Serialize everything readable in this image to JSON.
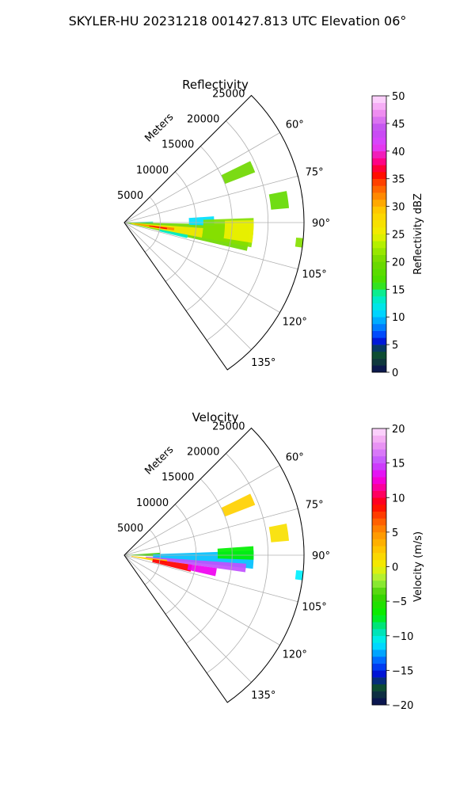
{
  "figure": {
    "title": "SKYLER-HU  20231218  001427.813 UTC Elevation 06°"
  },
  "chart_data": [
    {
      "type": "heatmap",
      "subtype": "polar-sector-ppi",
      "title": "Reflectivity",
      "radial_label": "Meters",
      "radial_ticks": [
        5000,
        10000,
        15000,
        20000,
        25000
      ],
      "radial_tick_labels": [
        "5000",
        "10000",
        "15000",
        "20000",
        "25000"
      ],
      "range_max": 25000,
      "angle_range_deg": [
        45,
        145
      ],
      "angle_ticks": [
        60,
        75,
        90,
        105,
        120,
        135
      ],
      "angle_tick_labels": [
        "60°",
        "75°",
        "90°",
        "105°",
        "120°",
        "135°"
      ],
      "grid": true,
      "colorbar": {
        "label": "Reflectivity dBZ",
        "min": 0,
        "max": 50,
        "ticks": [
          0,
          5,
          10,
          15,
          20,
          25,
          30,
          35,
          40,
          45,
          50
        ],
        "tick_labels": [
          "0",
          "5",
          "10",
          "15",
          "20",
          "25",
          "30",
          "35",
          "40",
          "45",
          "50"
        ]
      },
      "echoes": [
        {
          "az": [
            88,
            93
          ],
          "range": [
            0,
            4000
          ],
          "value": 14
        },
        {
          "az": [
            91,
            103
          ],
          "range": [
            300,
            17500
          ],
          "value": 20
        },
        {
          "az": [
            94,
            101
          ],
          "range": [
            1000,
            11000
          ],
          "value": 26
        },
        {
          "az": [
            96,
            99
          ],
          "range": [
            1500,
            7000
          ],
          "value": 32
        },
        {
          "az": [
            97,
            99
          ],
          "range": [
            3500,
            6000
          ],
          "value": 36
        },
        {
          "az": [
            86,
            92
          ],
          "range": [
            9000,
            12500
          ],
          "value": 11
        },
        {
          "az": [
            101,
            104
          ],
          "range": [
            5000,
            9000
          ],
          "value": 13
        },
        {
          "az": [
            88,
            101
          ],
          "range": [
            11000,
            18000
          ],
          "value": 21
        },
        {
          "az": [
            89,
            99
          ],
          "range": [
            14000,
            18000
          ],
          "value": 25
        },
        {
          "az": [
            64,
            69
          ],
          "range": [
            15000,
            19500
          ],
          "value": 20
        },
        {
          "az": [
            79,
            85
          ],
          "range": [
            20500,
            23000
          ],
          "value": 19
        },
        {
          "az": [
            95,
            98
          ],
          "range": [
            24000,
            25000
          ],
          "value": 21
        }
      ]
    },
    {
      "type": "heatmap",
      "subtype": "polar-sector-ppi",
      "title": "Velocity",
      "radial_label": "Meters",
      "radial_ticks": [
        5000,
        10000,
        15000,
        20000,
        25000
      ],
      "radial_tick_labels": [
        "5000",
        "10000",
        "15000",
        "20000",
        "25000"
      ],
      "range_max": 25000,
      "angle_range_deg": [
        45,
        145
      ],
      "angle_ticks": [
        60,
        75,
        90,
        105,
        120,
        135
      ],
      "angle_tick_labels": [
        "60°",
        "75°",
        "90°",
        "105°",
        "120°",
        "135°"
      ],
      "grid": true,
      "colorbar": {
        "label": "Velocity (m/s)",
        "min": -20,
        "max": 20,
        "ticks": [
          -20,
          -15,
          -10,
          -5,
          0,
          5,
          10,
          15,
          20
        ],
        "tick_labels": [
          "−20",
          "−15",
          "−10",
          "−5",
          "0",
          "5",
          "10",
          "15",
          "20"
        ]
      },
      "echoes": [
        {
          "az": [
            86,
            92
          ],
          "range": [
            0,
            5000
          ],
          "value": -4
        },
        {
          "az": [
            88,
            96
          ],
          "range": [
            4000,
            18000
          ],
          "value": -12
        },
        {
          "az": [
            94,
            98
          ],
          "range": [
            3000,
            17000
          ],
          "value": 15
        },
        {
          "az": [
            96,
            101
          ],
          "range": [
            1000,
            6000
          ],
          "value": 2
        },
        {
          "az": [
            98,
            104
          ],
          "range": [
            4000,
            9500
          ],
          "value": 9
        },
        {
          "az": [
            98,
            103
          ],
          "range": [
            9000,
            13000
          ],
          "value": 13
        },
        {
          "az": [
            86,
            92
          ],
          "range": [
            13000,
            18000
          ],
          "value": -7
        },
        {
          "az": [
            95,
            98
          ],
          "range": [
            24000,
            25000
          ],
          "value": -11
        },
        {
          "az": [
            64,
            69
          ],
          "range": [
            15000,
            19500
          ],
          "value": 2
        },
        {
          "az": [
            79,
            85
          ],
          "range": [
            20500,
            23000
          ],
          "value": 1
        }
      ]
    }
  ]
}
